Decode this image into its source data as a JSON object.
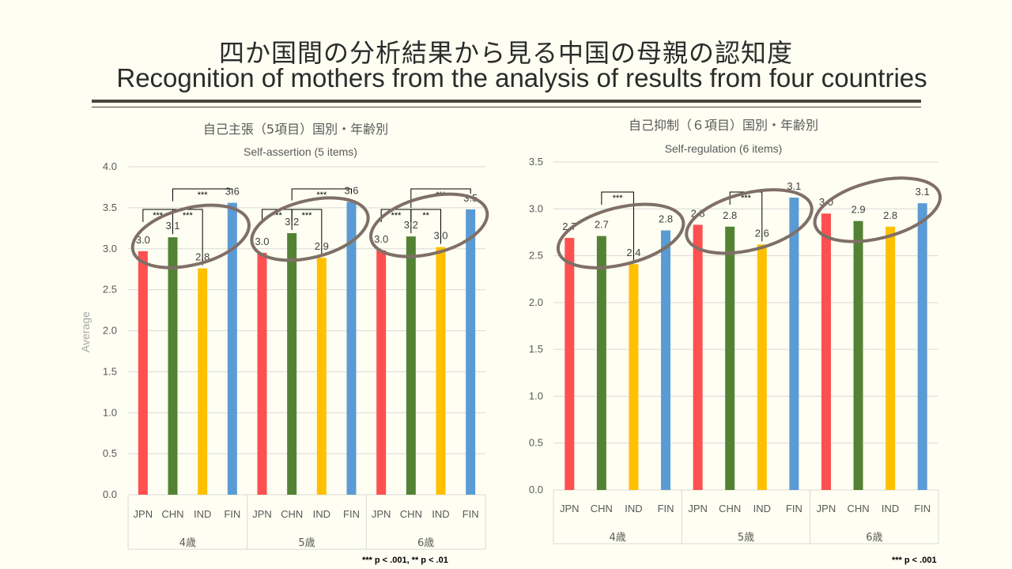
{
  "slide": {
    "title_jp": "四か国間の分析結果から見る中国の母親の認知度",
    "title_en": "Recognition of mothers from the analysis of results from four countries",
    "note_left": "*** p < .001, ** p < .01",
    "note_right": "*** p < .001"
  },
  "colors": {
    "JPN": "#fe5050",
    "CHN": "#548235",
    "IND": "#ffc000",
    "FIN": "#5b9bd5",
    "ellipse": "#7f6f66",
    "grid": "#d9d9d9",
    "axis_text": "#595959"
  },
  "chart_data": [
    {
      "type": "bar",
      "title": "自己主張（5項目）国別・年齢別",
      "subtitle": "Self-assertion (5 items)",
      "ylabel": "Average",
      "ylim": [
        0,
        4.0
      ],
      "yticks": [
        "0.0",
        "0.5",
        "1.0",
        "1.5",
        "2.0",
        "2.5",
        "3.0",
        "3.5",
        "4.0"
      ],
      "groups": [
        "4歳",
        "5歳",
        "6歳"
      ],
      "categories": [
        "JPN",
        "CHN",
        "IND",
        "FIN"
      ],
      "series": [
        {
          "values": [
            2.97,
            3.14,
            2.76,
            3.56
          ],
          "labels": [
            "3.0",
            "3.1",
            "2.8",
            "3.6"
          ]
        },
        {
          "values": [
            2.95,
            3.19,
            2.89,
            3.57
          ],
          "labels": [
            "3.0",
            "3.2",
            "2.9",
            "3.6"
          ]
        },
        {
          "values": [
            2.98,
            3.15,
            3.02,
            3.48
          ],
          "labels": [
            "3.0",
            "3.2",
            "3.0",
            "3.5"
          ]
        }
      ],
      "significance": [
        {
          "group": 0,
          "from": 0,
          "to": 1,
          "label": "***"
        },
        {
          "group": 0,
          "from": 1,
          "to": 2,
          "label": "***"
        },
        {
          "group": 0,
          "from": 1,
          "to": 3,
          "label": "***"
        },
        {
          "group": 1,
          "from": 0,
          "to": 1,
          "label": "***"
        },
        {
          "group": 1,
          "from": 1,
          "to": 2,
          "label": "***"
        },
        {
          "group": 1,
          "from": 1,
          "to": 3,
          "label": "***"
        },
        {
          "group": 2,
          "from": 0,
          "to": 1,
          "label": "***"
        },
        {
          "group": 2,
          "from": 1,
          "to": 2,
          "label": "**"
        },
        {
          "group": 2,
          "from": 1,
          "to": 3,
          "label": "***"
        }
      ],
      "highlighted_groups": [
        0,
        1,
        2
      ]
    },
    {
      "type": "bar",
      "title": "自己抑制（６項目）国別・年齢別",
      "subtitle": "Self-regulation (6 items)",
      "ylabel": "",
      "ylim": [
        0,
        3.5
      ],
      "yticks": [
        "0.0",
        "0.5",
        "1.0",
        "1.5",
        "2.0",
        "2.5",
        "3.0",
        "3.5"
      ],
      "groups": [
        "4歳",
        "5歳",
        "6歳"
      ],
      "categories": [
        "JPN",
        "CHN",
        "IND",
        "FIN"
      ],
      "series": [
        {
          "values": [
            2.69,
            2.71,
            2.41,
            2.77
          ],
          "labels": [
            "2.7",
            "2.7",
            "2.4",
            "2.8"
          ]
        },
        {
          "values": [
            2.83,
            2.81,
            2.62,
            3.12
          ],
          "labels": [
            "2.8",
            "2.8",
            "2.6",
            "3.1"
          ]
        },
        {
          "values": [
            2.95,
            2.87,
            2.81,
            3.06
          ],
          "labels": [
            "3.0",
            "2.9",
            "2.8",
            "3.1"
          ]
        }
      ],
      "significance": [
        {
          "group": 0,
          "from": 1,
          "to": 2,
          "label": "***"
        },
        {
          "group": 1,
          "from": 1,
          "to": 2,
          "label": "***"
        }
      ],
      "highlighted_groups": [
        0,
        1,
        2
      ]
    }
  ]
}
